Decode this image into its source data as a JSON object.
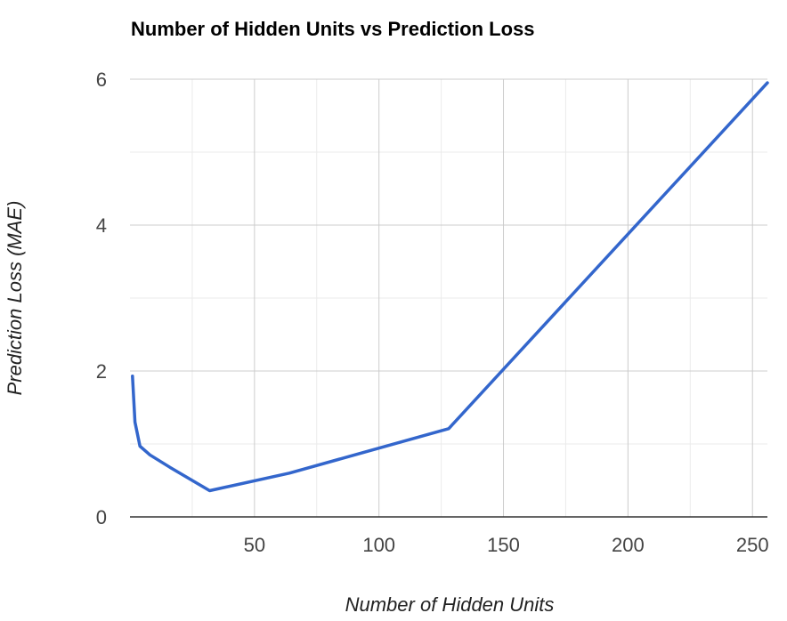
{
  "chart_data": {
    "type": "line",
    "title": "Number of Hidden Units vs Prediction Loss",
    "xlabel": "Number of Hidden Units",
    "ylabel": "Prediction Loss (MAE)",
    "xlim": [
      0,
      256
    ],
    "ylim": [
      0,
      6
    ],
    "x_ticks": [
      50,
      100,
      150,
      200,
      250
    ],
    "y_ticks": [
      0,
      2,
      4,
      6
    ],
    "x_minor_gridlines": [
      25,
      75,
      125,
      175,
      225
    ],
    "y_minor_gridlines": [
      1,
      3,
      5
    ],
    "grid": true,
    "legend": "none",
    "series": [
      {
        "color": "#3366cc",
        "x": [
          1,
          2,
          4,
          8,
          16,
          32,
          64,
          128,
          256
        ],
        "y": [
          1.93,
          1.3,
          0.97,
          0.85,
          0.68,
          0.36,
          0.6,
          1.21,
          5.95
        ]
      }
    ]
  }
}
